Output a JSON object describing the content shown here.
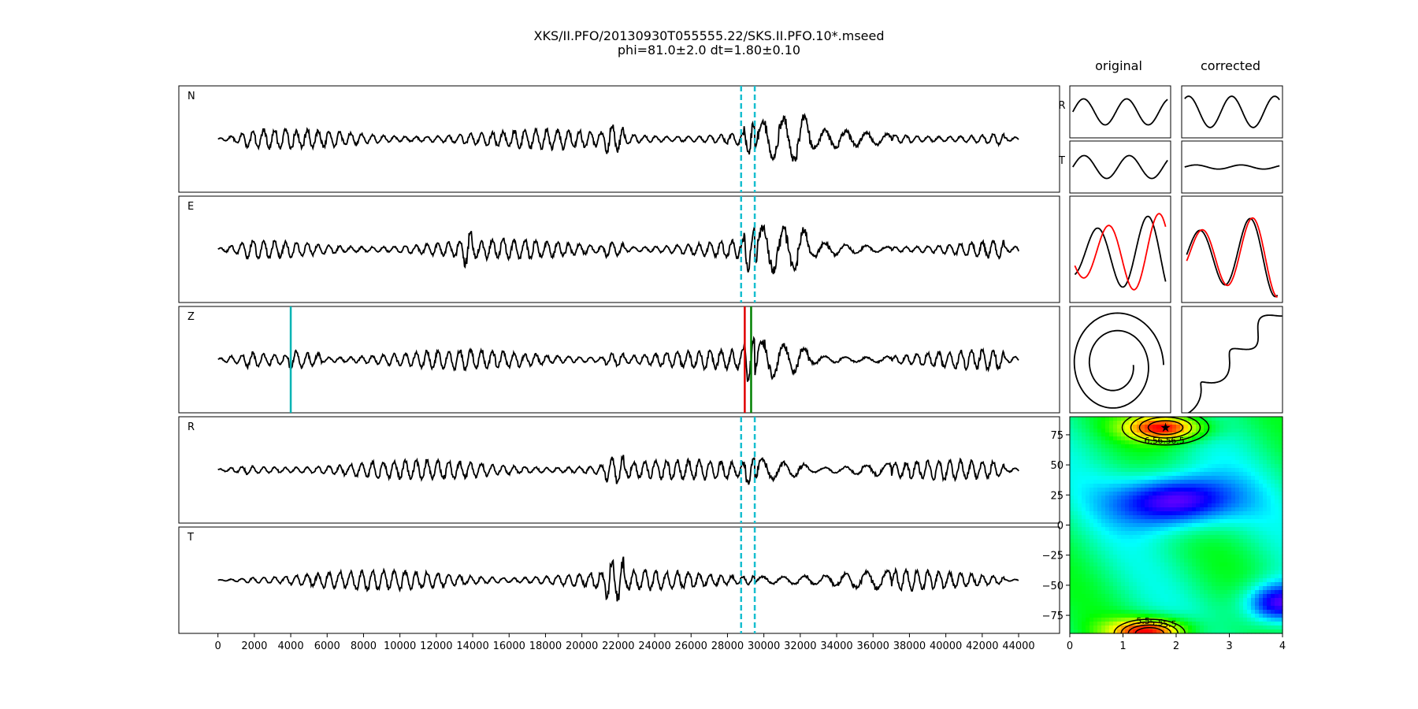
{
  "title_line1": "XKS/II.PFO/20130930T055555.22/SKS.II.PFO.10*.mseed",
  "title_line2": "phi=81.0±2.0 dt=1.80±0.10",
  "col_original": "original",
  "col_corrected": "corrected",
  "colors": {
    "trace": "#000000",
    "window": "#17becf",
    "pick_red": "#e00000",
    "pick_green": "#008000",
    "pick_cyan": "#00b3b3",
    "particle_red": "#ff0000"
  },
  "chart_data": [
    {
      "type": "line",
      "name": "seismograms",
      "channels": [
        "N",
        "E",
        "Z",
        "R",
        "T"
      ],
      "x_ticks": [
        0,
        2000,
        4000,
        6000,
        8000,
        10000,
        12000,
        14000,
        16000,
        18000,
        20000,
        22000,
        24000,
        26000,
        28000,
        30000,
        32000,
        34000,
        36000,
        38000,
        40000,
        42000,
        44000
      ],
      "xlim": [
        -2150,
        46250
      ],
      "x_range_data": [
        0,
        44000
      ],
      "window_lines": [
        28750,
        29500
      ],
      "z_picks": {
        "cyan": 4000,
        "red": 28950,
        "green": 29300
      },
      "grid": false
    },
    {
      "type": "line",
      "name": "waveform-comparison",
      "columns": [
        "original",
        "corrected"
      ],
      "row_labels": [
        "R",
        "T"
      ]
    },
    {
      "type": "heatmap",
      "name": "phi-dt-grid",
      "x_ticks": [
        0,
        1,
        2,
        3,
        4
      ],
      "y_ticks": [
        75,
        50,
        25,
        0,
        -25,
        -50,
        -75
      ],
      "xlim": [
        0,
        4
      ],
      "ylim": [
        -90,
        90
      ],
      "best_phi": 81.0,
      "best_dt": 1.8,
      "contour_labels": [
        "6.5",
        "6.5",
        "6.5",
        "5.5",
        "5.5",
        "5.5"
      ],
      "colormap": "hsv-like"
    }
  ]
}
